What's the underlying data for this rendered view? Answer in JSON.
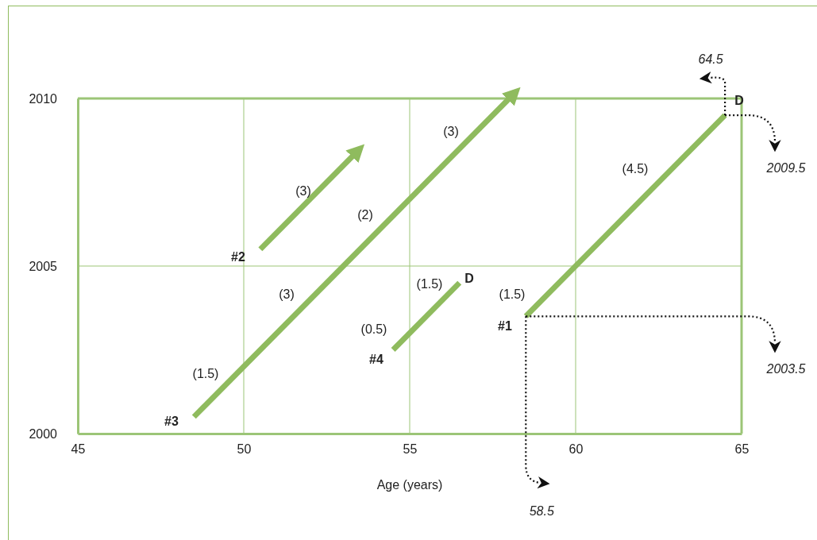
{
  "chart_data": {
    "type": "line",
    "xlabel": "Age (years)",
    "xlim": [
      45,
      65
    ],
    "ylim": [
      2000,
      2010
    ],
    "xticks": [
      45,
      50,
      55,
      60,
      65
    ],
    "yticks": [
      2000,
      2005,
      2010
    ],
    "grid": true,
    "line_style": "solid",
    "marker": "none",
    "series": [
      {
        "color": "#8fbb5e",
        "x": [
          58.5,
          64.5
        ],
        "values": [
          2003.5,
          2009.5
        ]
      },
      {
        "color": "#8fbb5e",
        "x": [
          50.5,
          53.3
        ],
        "values": [
          2005.5,
          2008.3
        ]
      },
      {
        "color": "#8fbb5e",
        "x": [
          48.5,
          58
        ],
        "values": [
          2000.5,
          2010
        ]
      },
      {
        "color": "#8fbb5e",
        "x": [
          54.5,
          56.5
        ],
        "values": [
          2002.5,
          2004.5
        ]
      }
    ],
    "annotations": [
      "(3)",
      "(2)",
      "(3)",
      "(3)",
      "(1.5)",
      "(0.5)",
      "(1.5)",
      "D",
      "(1.5)",
      "(4.5)",
      "D",
      "#1",
      "#2",
      "#3",
      "#4",
      "64.5",
      "2009.5",
      "58.5",
      "2003.5"
    ]
  }
}
